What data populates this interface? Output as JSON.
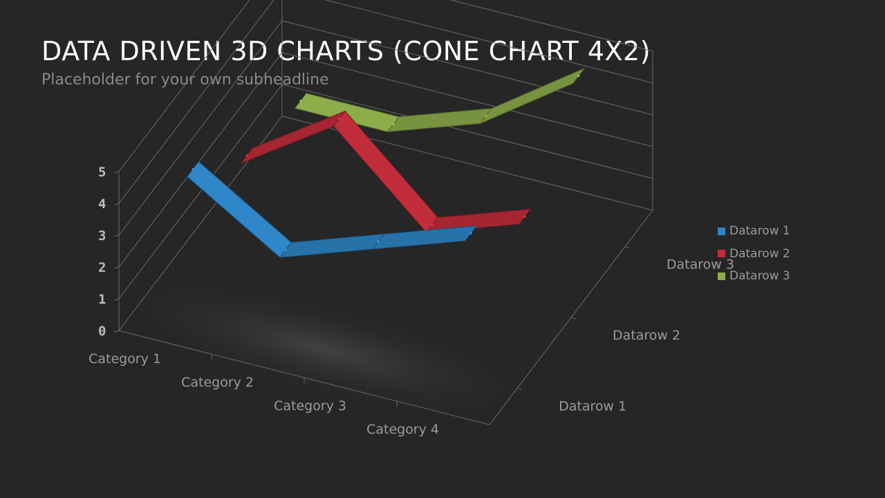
{
  "slide": {
    "title": "DATA DRIVEN 3D CHARTS (CONE CHART 4X2)",
    "subtitle": "Placeholder  for your own subheadline"
  },
  "colors": {
    "background": "#262626",
    "series": [
      "#2f86c8",
      "#c22d3b",
      "#8cad4a"
    ],
    "grid": "#6a6a6a"
  },
  "chart_data": {
    "type": "line",
    "variant": "3d-ribbon",
    "title": "",
    "categories": [
      "Category 1",
      "Category 2",
      "Category 3",
      "Category 4"
    ],
    "series": [
      {
        "name": "Datarow 1",
        "values": [
          4.3,
          2.5,
          3.5,
          4.5
        ]
      },
      {
        "name": "Datarow 2",
        "values": [
          2.5,
          4.4,
          1.8,
          2.8
        ]
      },
      {
        "name": "Datarow 3",
        "values": [
          2.0,
          2.0,
          3.0,
          5.0
        ]
      }
    ],
    "depth_labels": [
      "Datarow 1",
      "Datarow 2",
      "Datarow 3"
    ],
    "y_ticks": [
      "0",
      "1",
      "2",
      "3",
      "4",
      "5"
    ],
    "ylim": [
      0,
      5
    ],
    "grid": true,
    "legend": "right"
  }
}
